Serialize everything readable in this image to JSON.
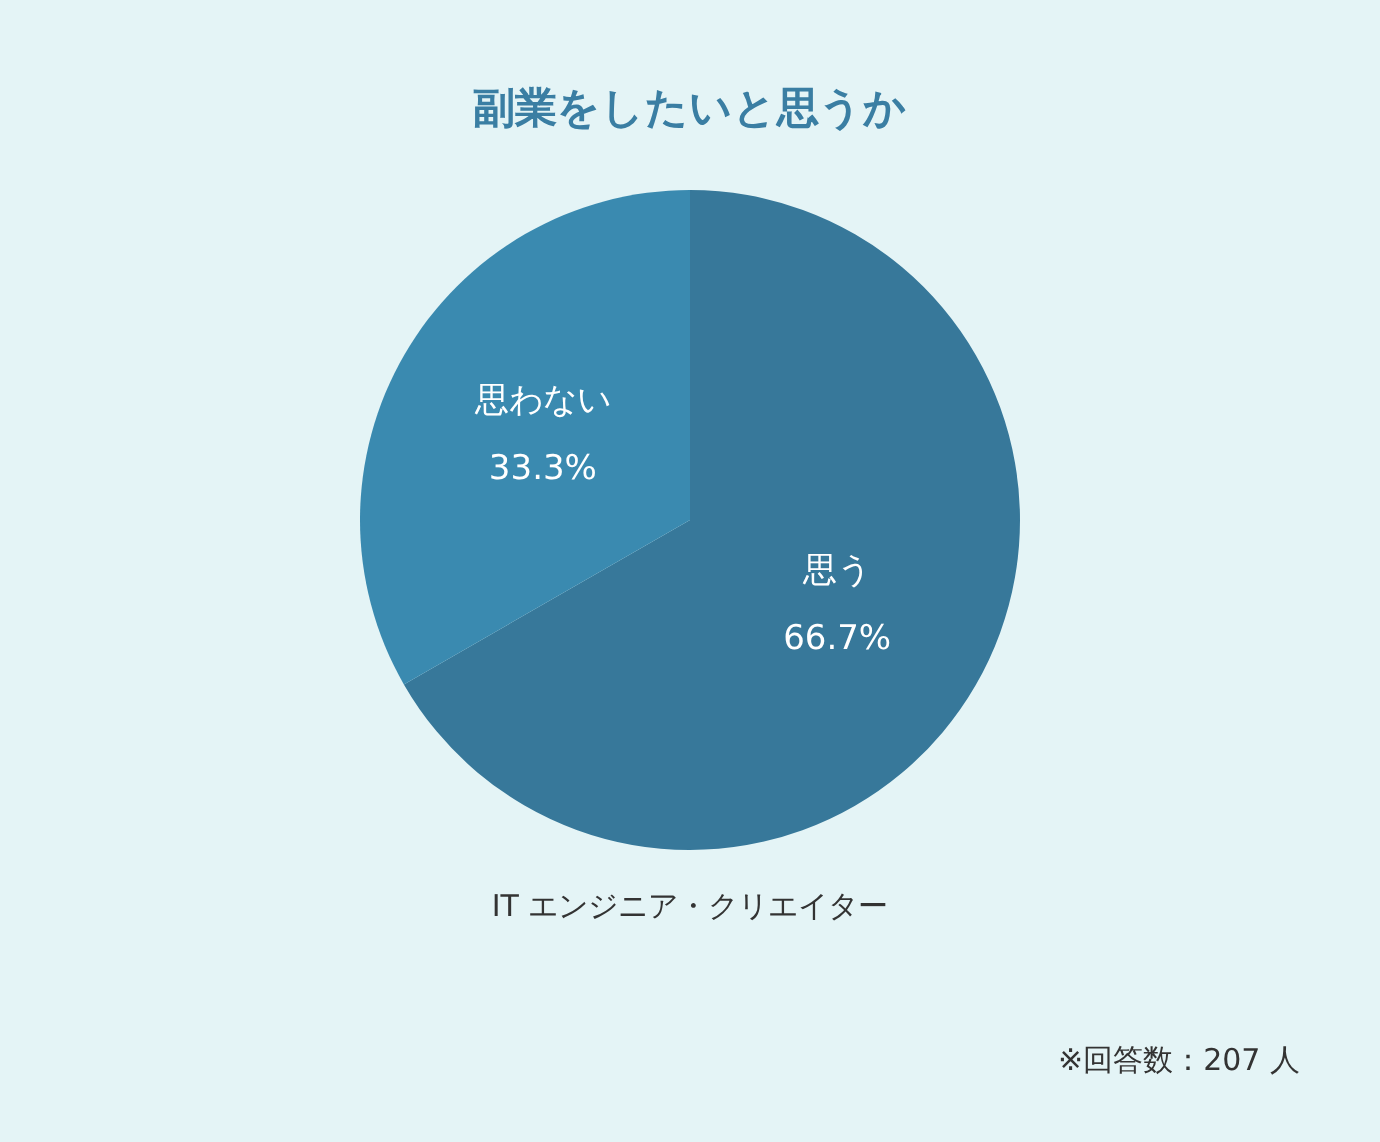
{
  "chart_data": {
    "type": "pie",
    "title": "副業をしたいと思うか",
    "categories": [
      "思う",
      "思わない"
    ],
    "values": [
      66.7,
      33.3
    ],
    "value_labels": [
      "66.7%",
      "33.3%"
    ],
    "colors": [
      "#37789a",
      "#3a8ab0"
    ],
    "annotations": [
      "IT エンジニア・クリエイター",
      "※回答数：207 人"
    ]
  }
}
